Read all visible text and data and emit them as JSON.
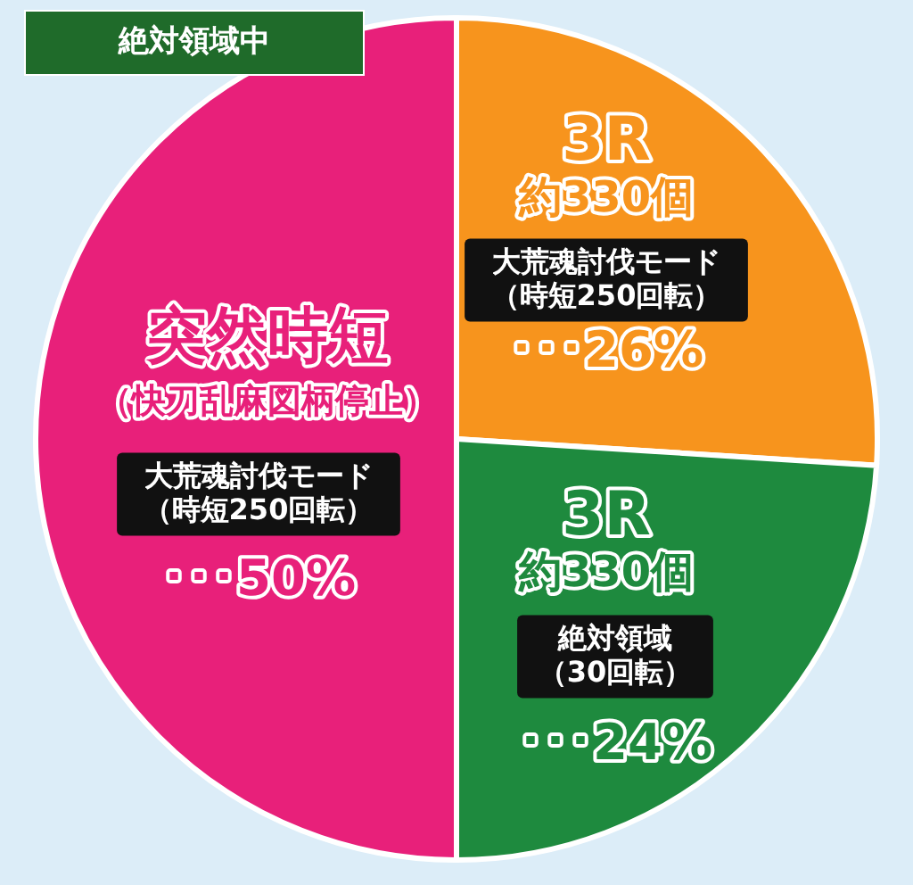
{
  "chart_data": {
    "type": "pie",
    "title": "絶対領域中",
    "categories": [
      "3R",
      "3R",
      "突然時短"
    ],
    "values": [
      26,
      24,
      50
    ],
    "colors": [
      "#f7941d",
      "#1e8a3e",
      "#e8207a"
    ],
    "value_labels": [
      "･･･26%",
      "･･･24%",
      "･･･50%"
    ],
    "annotations": [
      "約330個",
      "大荒魂討伐モード",
      "（時短250回転）",
      "約330個",
      "絶対領域",
      "（30回転）",
      "（快刀乱麻図柄停止）",
      "大荒魂討伐モード",
      "（時短250回転）"
    ]
  }
}
